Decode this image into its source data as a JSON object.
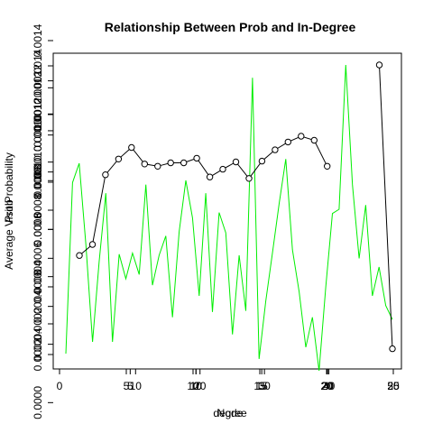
{
  "chart_data": {
    "type": "line",
    "title": "Relationship Between Prob and In-Degree",
    "xlabels": [
      "Node",
      "degree"
    ],
    "ylabels": [
      "Average Visit Probability",
      "Prob"
    ],
    "plot_box": true,
    "grid": false,
    "axis_sets": [
      {
        "x": {
          "lim": [
            0,
            25
          ],
          "ticks": [
            0,
            5,
            10,
            15,
            20,
            25
          ]
        },
        "y": {
          "lim": [
            0.0002,
            0.0014
          ],
          "ticks": [
            "0.0002",
            "0.0004",
            "0.0006",
            "0.0008",
            "0.0010",
            "0.0012",
            "0.0014"
          ]
        }
      },
      {
        "x": {
          "lim": [
            1,
            25
          ],
          "ticks": [
            10,
            20
          ]
        },
        "y": {
          "lim": [
            0.00027,
            0.0012
          ],
          "ticks": [
            "0.0004",
            "0.0006",
            "0.0008",
            "0.0010",
            "0.0012"
          ]
        }
      },
      {
        "x": {
          "lim": [
            1,
            50
          ],
          "ticks": [
            10,
            20,
            30,
            40,
            50
          ]
        },
        "y": {
          "lim": [
            0.00066,
            0.00126
          ],
          "ticks": [
            "0.0008",
            "0.0010",
            "0.0012"
          ]
        }
      },
      {
        "x": {
          "lim": [
            1,
            25
          ],
          "ticks": [
            5,
            10,
            15,
            20,
            25
          ]
        },
        "y": {
          "lim": [
            0.0002,
            0.0014
          ],
          "ticks": [
            "0.0000",
            "0.0002",
            "0.0004",
            "0.0006",
            "0.0008",
            "0.0010",
            "0.0012",
            "0.0014"
          ]
        }
      }
    ],
    "series": [
      {
        "color": "#00ee00",
        "style": "line",
        "x": [
          1,
          2,
          3,
          4,
          5,
          6,
          7,
          8,
          9,
          10,
          11,
          12,
          13,
          14,
          15,
          16,
          17,
          18,
          19,
          20,
          21,
          22,
          23,
          24,
          25,
          26,
          27,
          28,
          29,
          30,
          31,
          32,
          33,
          34,
          35,
          36,
          37,
          38,
          39,
          40,
          41,
          42,
          43,
          44,
          45,
          46,
          47,
          48,
          49,
          50
        ],
        "y": [
          0.0,
          0.00016,
          0.000178,
          0.000102,
          1.1e-05,
          8.6e-05,
          0.00015,
          1.1e-05,
          9.3e-05,
          7e-05,
          9.4e-05,
          7.4e-05,
          0.000158,
          6.4e-05,
          9.2e-05,
          0.00011,
          3.4e-05,
          0.000114,
          0.000162,
          0.000127,
          5.4e-05,
          0.00015,
          3.9e-05,
          0.000132,
          0.000113,
          1.8e-05,
          9.2e-05,
          4e-05,
          0.000258,
          -5e-06,
          4.9e-05,
          9.4e-05,
          0.00014,
          0.000182,
          9.7e-05,
          5.8e-05,
          6e-06,
          3.4e-05,
          -1.6e-05,
          6.2e-05,
          0.000131,
          0.000135,
          0.00027,
          0.000158,
          8.9e-05,
          0.000139,
          5.4e-05,
          8.1e-05,
          4.5e-05,
          3.2e-05
        ]
      },
      {
        "color": "#000000",
        "style": "line+points",
        "x": [
          1,
          2,
          3,
          4,
          5,
          6,
          7,
          8,
          9,
          10,
          11,
          12,
          13,
          14,
          15,
          16,
          17,
          18,
          19,
          20,
          21,
          22,
          23,
          24,
          25
        ],
        "y": [
          0.000542,
          0.00058,
          0.000821,
          0.000875,
          0.000915,
          0.000858,
          0.00085,
          0.000862,
          0.000862,
          0.000878,
          0.000813,
          0.00084,
          0.000865,
          0.000808,
          0.000868,
          0.000907,
          0.000934,
          0.000954,
          0.00094,
          0.00085,
          null,
          null,
          null,
          0.0012,
          0.00022
        ]
      }
    ]
  }
}
